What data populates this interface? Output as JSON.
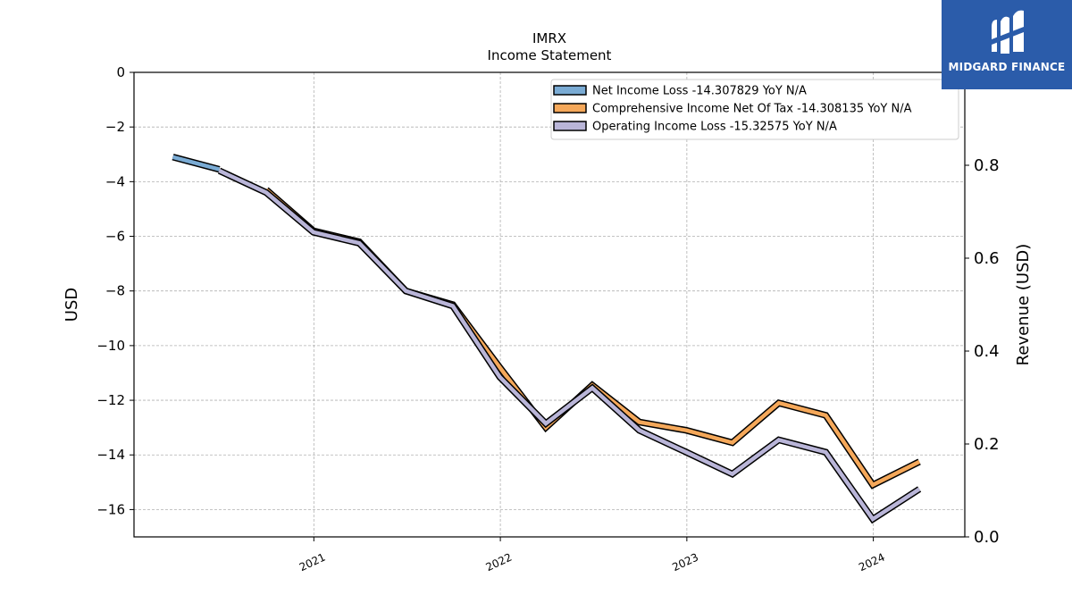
{
  "chart_data": {
    "type": "line",
    "title": "IMRX",
    "subtitle": "Income Statement",
    "ylabel_left": "USD",
    "ylabel_right": "Revenue (USD)",
    "ylim_left": [
      -17,
      0
    ],
    "ylim_right": [
      0,
      1.0
    ],
    "yticks_left": [
      "0",
      "−2",
      "−4",
      "−6",
      "−8",
      "−10",
      "−12",
      "−14",
      "−16"
    ],
    "yticks_right": [
      "0.0",
      "0.2",
      "0.4",
      "0.6",
      "0.8"
    ],
    "xticks": [
      "2021",
      "2022",
      "2023",
      "2024"
    ],
    "grid": true,
    "legend_position": "top-right",
    "x": [
      "2020-03-31",
      "2020-06-30",
      "2020-09-30",
      "2020-12-31",
      "2021-03-31",
      "2021-06-30",
      "2021-09-30",
      "2021-12-31",
      "2022-03-31",
      "2022-06-30",
      "2022-09-30",
      "2022-12-31",
      "2023-03-31",
      "2023-06-30",
      "2023-09-30",
      "2023-12-31",
      "2024-03-31"
    ],
    "series": [
      {
        "name": "Net Income Loss",
        "legend": "Net Income Loss  -14.307829 YoY N/A",
        "color": "#7aabd4",
        "values": [
          -3.1,
          -3.55,
          null,
          null,
          null,
          null,
          null,
          null,
          null,
          null,
          null,
          null,
          null,
          null,
          null,
          null,
          null
        ]
      },
      {
        "name": "Comprehensive Income Net Of Tax",
        "legend": "Comprehensive Income Net Of Tax  -14.308135 YoY N/A",
        "color": "#f5a85a",
        "values": [
          null,
          null,
          -4.3,
          -5.8,
          -6.2,
          -8.0,
          -8.5,
          -10.8,
          -13.0,
          -11.45,
          -12.8,
          -13.1,
          -13.55,
          -12.1,
          -12.55,
          -15.1,
          -14.25
        ]
      },
      {
        "name": "Operating Income Loss",
        "legend": "Operating Income Loss  -15.32575 YoY N/A",
        "color": "#b9b5d8",
        "values": [
          null,
          -3.6,
          -4.4,
          -5.85,
          -6.25,
          -8.0,
          -8.55,
          -11.15,
          -12.85,
          -11.55,
          -13.1,
          -13.9,
          -14.7,
          -13.45,
          -13.9,
          -16.35,
          -15.25
        ]
      }
    ]
  },
  "logo": {
    "text": "MIDGARD FINANCE"
  }
}
